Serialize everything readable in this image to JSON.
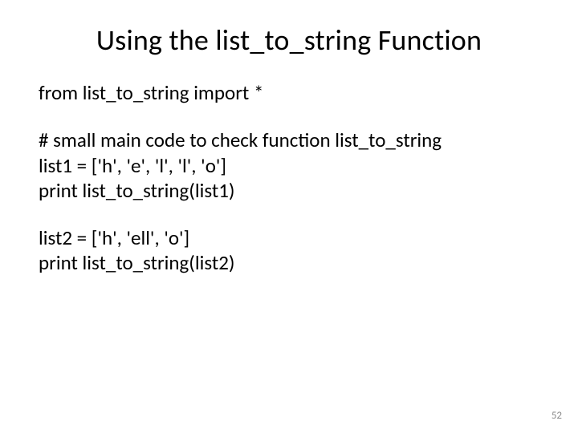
{
  "title": "Using the list_to_string Function",
  "para1": "from list_to_string import *",
  "block1": {
    "l1": "# small main code to check function list_to_string",
    "l2": "list1 = ['h', 'e', 'l', 'l', 'o']",
    "l3": "print list_to_string(list1)"
  },
  "block2": {
    "l1": "list2 = ['h', 'ell', 'o']",
    "l2": "print list_to_string(list2)"
  },
  "page_number": "52"
}
